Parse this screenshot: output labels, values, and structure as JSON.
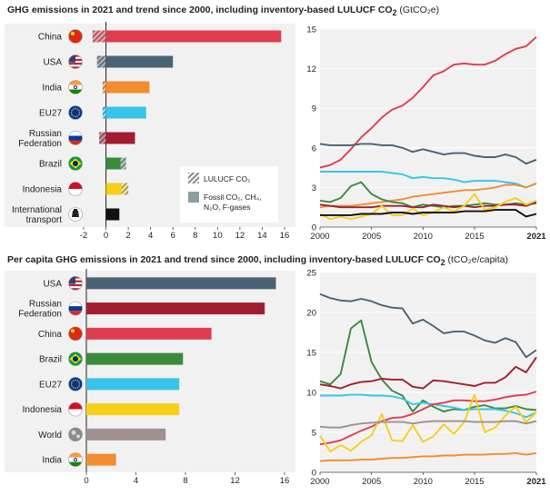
{
  "titles": {
    "top_main": "GHG emissions in 2021 and trend since 2000, including inventory-based LULUCF CO",
    "top_sub": "2",
    "top_unit": " (GtCO₂e)",
    "bottom_main": "Per capita GHG emissions in 2021 and trend since 2000, including inventory-based LULUCF CO",
    "bottom_sub": "2",
    "bottom_unit": " (tCO₂e/capita)"
  },
  "legend": {
    "lulucf": "LULUCF CO₂",
    "fossil_line1": "Fossil CO₂, CH₄,",
    "fossil_line2": "N₂O, F-gases"
  },
  "colors": {
    "China": "#e03c50",
    "USA": "#4a6272",
    "India": "#f28c30",
    "EU27": "#38c4ea",
    "Russian Federation": "#a01e30",
    "Brazil": "#3a8a3e",
    "Indonesia": "#f6cf1a",
    "International transport": "#111111",
    "World": "#a09090"
  },
  "chart_data": [
    {
      "type": "bar",
      "title": "GHG emissions in 2021, including inventory-based LULUCF CO₂ (GtCO₂e)",
      "categories": [
        "China",
        "USA",
        "India",
        "EU27",
        "Russian Federation",
        "Brazil",
        "Indonesia",
        "International transport"
      ],
      "series": [
        {
          "name": "Fossil CO₂, CH₄, N₂O, F-gases",
          "values": [
            15.7,
            6.0,
            3.9,
            3.6,
            2.6,
            1.3,
            1.4,
            1.2
          ]
        },
        {
          "name": "LULUCF CO₂",
          "values": [
            -1.2,
            -0.8,
            -0.3,
            -0.3,
            -0.6,
            0.5,
            0.6,
            0
          ]
        }
      ],
      "xlim": [
        -2,
        16
      ],
      "xticks": [
        -2,
        0,
        2,
        4,
        6,
        8,
        10,
        12,
        14,
        16
      ]
    },
    {
      "type": "line",
      "title": "GHG emission trend since 2000 (GtCO₂e)",
      "x": [
        2000,
        2001,
        2002,
        2003,
        2004,
        2005,
        2006,
        2007,
        2008,
        2009,
        2010,
        2011,
        2012,
        2013,
        2014,
        2015,
        2016,
        2017,
        2018,
        2019,
        2020,
        2021
      ],
      "series": [
        {
          "name": "China",
          "values": [
            4.5,
            4.7,
            5.1,
            5.9,
            6.8,
            7.5,
            8.3,
            8.9,
            9.2,
            9.8,
            10.6,
            11.5,
            11.8,
            12.3,
            12.4,
            12.3,
            12.3,
            12.6,
            13.1,
            13.5,
            13.7,
            14.4
          ]
        },
        {
          "name": "USA",
          "values": [
            6.3,
            6.2,
            6.2,
            6.2,
            6.3,
            6.3,
            6.2,
            6.2,
            6.0,
            5.7,
            5.9,
            5.7,
            5.5,
            5.6,
            5.6,
            5.4,
            5.3,
            5.3,
            5.5,
            5.3,
            4.8,
            5.1
          ]
        },
        {
          "name": "EU27",
          "values": [
            4.2,
            4.2,
            4.2,
            4.2,
            4.2,
            4.2,
            4.2,
            4.1,
            4.0,
            3.7,
            3.8,
            3.7,
            3.7,
            3.6,
            3.4,
            3.5,
            3.5,
            3.5,
            3.4,
            3.3,
            3.0,
            3.3
          ]
        },
        {
          "name": "India",
          "values": [
            1.5,
            1.6,
            1.6,
            1.6,
            1.7,
            1.8,
            1.9,
            2.0,
            2.1,
            2.3,
            2.4,
            2.5,
            2.6,
            2.7,
            2.8,
            2.8,
            2.9,
            3.0,
            3.2,
            3.2,
            3.0,
            3.3
          ]
        },
        {
          "name": "Brazil",
          "values": [
            2.0,
            1.9,
            2.2,
            3.1,
            3.4,
            2.5,
            2.1,
            1.9,
            1.8,
            1.5,
            1.7,
            1.6,
            1.5,
            1.6,
            1.6,
            1.7,
            1.8,
            1.7,
            1.7,
            1.8,
            1.7,
            1.8
          ]
        },
        {
          "name": "Russian Federation",
          "values": [
            1.7,
            1.6,
            1.5,
            1.5,
            1.5,
            1.5,
            1.6,
            1.6,
            1.6,
            1.5,
            1.5,
            1.7,
            1.6,
            1.5,
            1.6,
            1.5,
            1.6,
            1.6,
            1.7,
            1.7,
            1.6,
            1.9
          ]
        },
        {
          "name": "Indonesia",
          "values": [
            1.0,
            0.6,
            0.8,
            0.6,
            0.8,
            1.0,
            1.6,
            0.9,
            0.9,
            1.4,
            0.9,
            1.1,
            1.5,
            1.2,
            1.6,
            2.5,
            1.3,
            1.5,
            1.9,
            2.2,
            1.7,
            2.0
          ]
        },
        {
          "name": "International transport",
          "values": [
            0.9,
            0.9,
            0.9,
            0.9,
            1.0,
            1.0,
            1.0,
            1.1,
            1.1,
            1.0,
            1.1,
            1.1,
            1.1,
            1.1,
            1.2,
            1.2,
            1.2,
            1.3,
            1.3,
            1.3,
            0.8,
            1.0
          ]
        }
      ],
      "xticks": [
        2000,
        2005,
        2010,
        2015,
        2021
      ],
      "ylim": [
        0,
        15
      ],
      "yticks": [
        0,
        3,
        6,
        9,
        12,
        15
      ]
    },
    {
      "type": "bar",
      "title": "Per capita GHG emissions in 2021, including inventory-based LULUCF CO₂ (tCO₂e/capita)",
      "categories": [
        "USA",
        "Russian Federation",
        "China",
        "Brazil",
        "EU27",
        "Indonesia",
        "World",
        "India"
      ],
      "values": [
        15.3,
        14.4,
        10.1,
        7.8,
        7.5,
        7.5,
        6.4,
        2.4
      ],
      "xlim": [
        0,
        16
      ],
      "xticks": [
        0,
        4,
        8,
        12,
        16
      ]
    },
    {
      "type": "line",
      "title": "Per capita GHG emission trend since 2000 (tCO₂e/capita)",
      "x": [
        2000,
        2001,
        2002,
        2003,
        2004,
        2005,
        2006,
        2007,
        2008,
        2009,
        2010,
        2011,
        2012,
        2013,
        2014,
        2015,
        2016,
        2017,
        2018,
        2019,
        2020,
        2021
      ],
      "series": [
        {
          "name": "USA",
          "values": [
            22.3,
            21.8,
            21.5,
            21.4,
            21.7,
            21.4,
            20.9,
            20.6,
            20.5,
            18.6,
            19.1,
            18.3,
            17.4,
            17.6,
            17.6,
            17.1,
            16.5,
            16.2,
            16.8,
            16.3,
            14.4,
            15.3
          ]
        },
        {
          "name": "Brazil",
          "values": [
            11.4,
            11.0,
            12.3,
            18.0,
            19.0,
            13.8,
            11.6,
            10.2,
            9.6,
            7.6,
            9.0,
            8.2,
            7.6,
            7.9,
            7.8,
            8.2,
            8.4,
            8.0,
            8.0,
            8.3,
            7.9,
            7.8
          ]
        },
        {
          "name": "Russian Federation",
          "values": [
            11.0,
            10.8,
            10.5,
            11.0,
            11.3,
            11.4,
            11.7,
            11.6,
            11.6,
            10.7,
            10.5,
            11.5,
            11.4,
            11.2,
            11.0,
            10.8,
            11.2,
            11.2,
            11.9,
            13.2,
            12.5,
            14.4
          ]
        },
        {
          "name": "EU27",
          "values": [
            9.6,
            9.6,
            9.6,
            9.7,
            9.7,
            9.6,
            9.6,
            9.5,
            9.2,
            8.5,
            8.7,
            8.5,
            8.3,
            8.1,
            7.8,
            7.9,
            7.9,
            7.9,
            7.7,
            7.4,
            6.9,
            7.5
          ]
        },
        {
          "name": "China",
          "values": [
            3.5,
            3.7,
            4.0,
            4.6,
            5.2,
            5.7,
            6.4,
            6.8,
            6.9,
            7.3,
            7.9,
            8.5,
            8.7,
            9.0,
            9.0,
            8.9,
            8.9,
            9.1,
            9.4,
            9.6,
            9.7,
            10.1
          ]
        },
        {
          "name": "Indonesia",
          "values": [
            4.6,
            2.6,
            3.4,
            2.7,
            3.8,
            4.6,
            7.3,
            4.0,
            3.9,
            5.9,
            3.8,
            4.5,
            6.0,
            4.8,
            6.3,
            9.7,
            5.0,
            5.6,
            7.1,
            8.2,
            6.3,
            7.5
          ]
        },
        {
          "name": "World",
          "values": [
            5.7,
            5.6,
            5.6,
            5.9,
            6.1,
            6.2,
            6.3,
            6.3,
            6.3,
            6.1,
            6.3,
            6.4,
            6.4,
            6.4,
            6.4,
            6.3,
            6.3,
            6.3,
            6.4,
            6.4,
            6.1,
            6.4
          ]
        },
        {
          "name": "India",
          "values": [
            1.4,
            1.5,
            1.5,
            1.5,
            1.6,
            1.6,
            1.7,
            1.8,
            1.8,
            1.9,
            2.0,
            2.0,
            2.1,
            2.1,
            2.2,
            2.2,
            2.2,
            2.3,
            2.3,
            2.4,
            2.2,
            2.4
          ]
        }
      ],
      "xticks": [
        2000,
        2005,
        2010,
        2015,
        2021
      ],
      "ylim": [
        0,
        25
      ],
      "yticks": [
        0,
        5,
        10,
        15,
        20,
        25
      ]
    }
  ]
}
